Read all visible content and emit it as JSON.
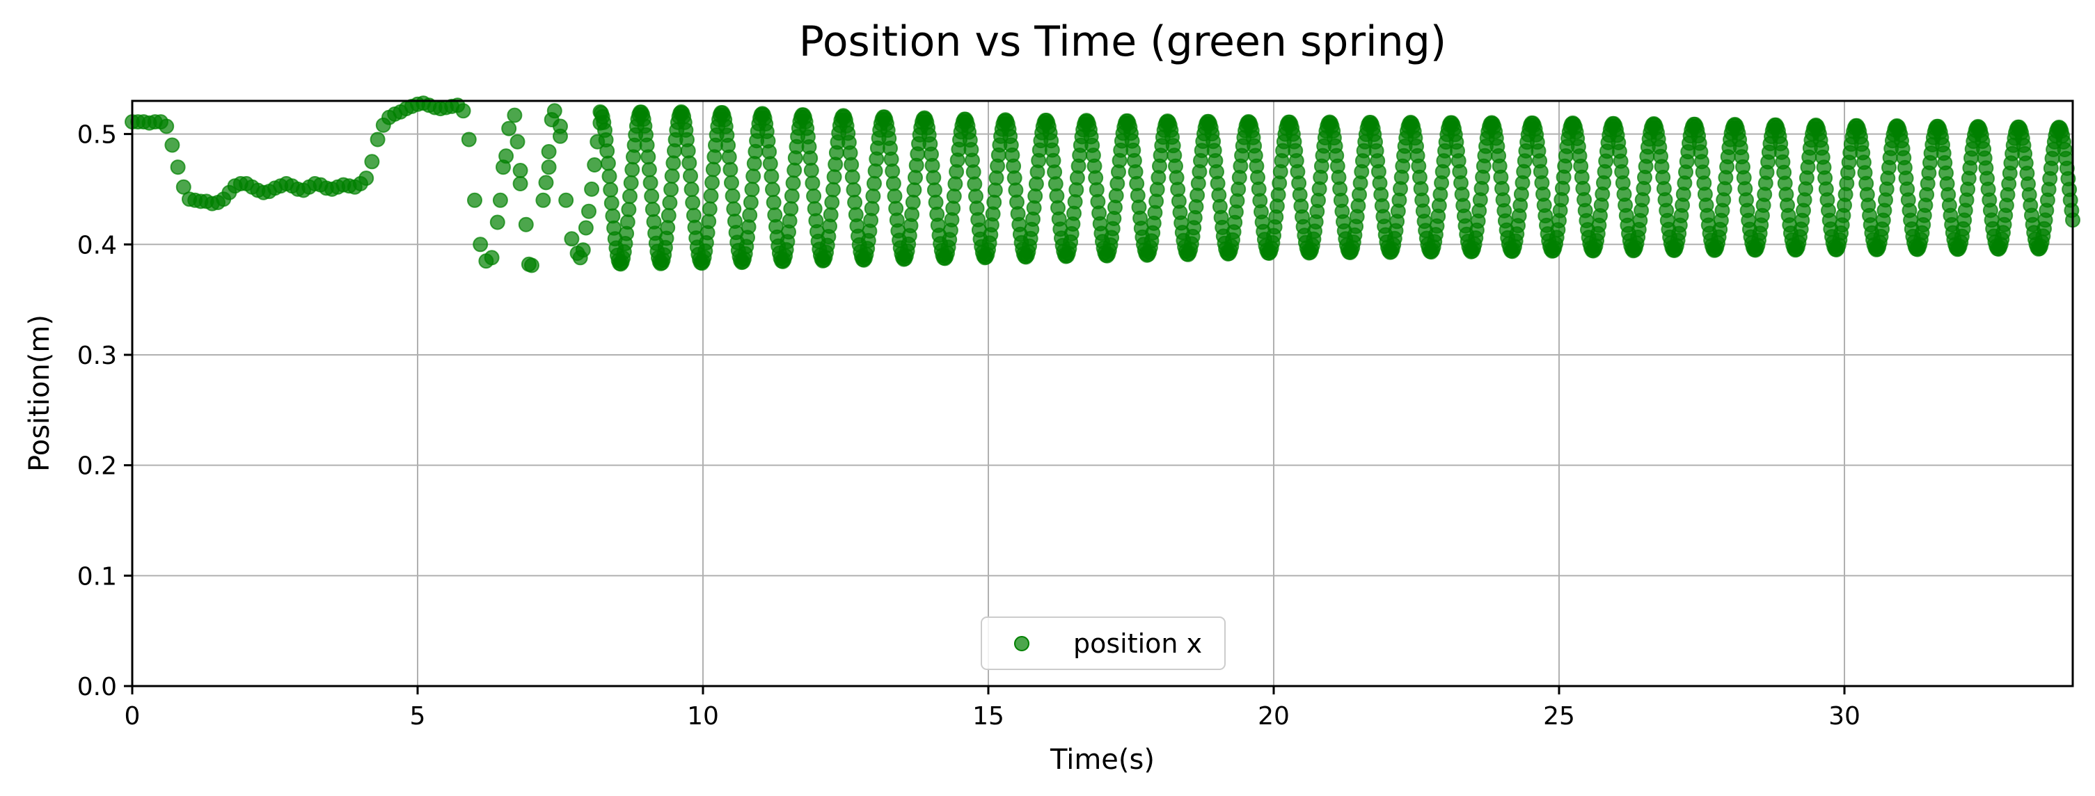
{
  "chart_data": {
    "type": "scatter",
    "title": "Position vs Time (green spring)",
    "xlabel": "Time(s)",
    "ylabel": "Position(m)",
    "xlim": [
      0,
      34
    ],
    "ylim": [
      0,
      0.53
    ],
    "xticks": [
      0,
      5,
      10,
      15,
      20,
      25,
      30
    ],
    "yticks": [
      0.0,
      0.1,
      0.2,
      0.3,
      0.4,
      0.5
    ],
    "xtick_labels": [
      "0",
      "5",
      "10",
      "15",
      "20",
      "25",
      "30"
    ],
    "ytick_labels": [
      "0.0",
      "0.1",
      "0.2",
      "0.3",
      "0.4",
      "0.5"
    ],
    "grid": true,
    "legend": {
      "placement": "lower center",
      "entries": [
        "position x"
      ]
    },
    "series": [
      {
        "name": "position x",
        "color": "#008000",
        "marker": "circle",
        "alpha": 0.7,
        "points": [
          [
            0.0,
            0.511
          ],
          [
            0.1,
            0.511
          ],
          [
            0.2,
            0.511
          ],
          [
            0.3,
            0.51
          ],
          [
            0.4,
            0.511
          ],
          [
            0.5,
            0.511
          ],
          [
            0.6,
            0.507
          ],
          [
            0.7,
            0.49
          ],
          [
            0.8,
            0.47
          ],
          [
            0.9,
            0.452
          ],
          [
            1.0,
            0.441
          ],
          [
            1.1,
            0.44
          ],
          [
            1.2,
            0.439
          ],
          [
            1.3,
            0.439
          ],
          [
            1.4,
            0.437
          ],
          [
            1.5,
            0.438
          ],
          [
            1.6,
            0.441
          ],
          [
            1.7,
            0.447
          ],
          [
            1.8,
            0.453
          ],
          [
            1.9,
            0.455
          ],
          [
            2.0,
            0.455
          ],
          [
            2.1,
            0.452
          ],
          [
            2.2,
            0.449
          ],
          [
            2.3,
            0.447
          ],
          [
            2.4,
            0.448
          ],
          [
            2.5,
            0.451
          ],
          [
            2.6,
            0.453
          ],
          [
            2.7,
            0.455
          ],
          [
            2.8,
            0.453
          ],
          [
            2.9,
            0.45
          ],
          [
            3.0,
            0.449
          ],
          [
            3.1,
            0.452
          ],
          [
            3.2,
            0.455
          ],
          [
            3.3,
            0.454
          ],
          [
            3.4,
            0.451
          ],
          [
            3.5,
            0.45
          ],
          [
            3.6,
            0.452
          ],
          [
            3.7,
            0.454
          ],
          [
            3.8,
            0.453
          ],
          [
            3.9,
            0.452
          ],
          [
            4.0,
            0.455
          ],
          [
            4.1,
            0.46
          ],
          [
            4.2,
            0.475
          ],
          [
            4.3,
            0.495
          ],
          [
            4.4,
            0.508
          ],
          [
            4.5,
            0.515
          ],
          [
            4.6,
            0.518
          ],
          [
            4.7,
            0.52
          ],
          [
            4.8,
            0.523
          ],
          [
            4.9,
            0.525
          ],
          [
            5.0,
            0.527
          ],
          [
            5.1,
            0.528
          ],
          [
            5.2,
            0.526
          ],
          [
            5.3,
            0.524
          ],
          [
            5.4,
            0.523
          ],
          [
            5.5,
            0.524
          ],
          [
            5.6,
            0.525
          ],
          [
            5.7,
            0.526
          ],
          [
            5.8,
            0.521
          ],
          [
            5.9,
            0.495
          ],
          [
            6.0,
            0.44
          ],
          [
            6.1,
            0.4
          ],
          [
            6.2,
            0.385
          ],
          [
            6.3,
            0.388
          ],
          [
            6.4,
            0.42
          ],
          [
            6.45,
            0.44
          ],
          [
            6.5,
            0.47
          ],
          [
            6.55,
            0.48
          ],
          [
            6.6,
            0.505
          ],
          [
            6.7,
            0.517
          ],
          [
            6.75,
            0.493
          ],
          [
            6.8,
            0.467
          ],
          [
            6.8,
            0.455
          ],
          [
            6.9,
            0.418
          ],
          [
            6.95,
            0.382
          ],
          [
            7.0,
            0.381
          ],
          [
            7.2,
            0.44
          ],
          [
            7.25,
            0.456
          ],
          [
            7.3,
            0.47
          ],
          [
            7.3,
            0.484
          ],
          [
            7.35,
            0.513
          ],
          [
            7.4,
            0.521
          ],
          [
            7.5,
            0.507
          ],
          [
            7.5,
            0.498
          ],
          [
            7.6,
            0.44
          ],
          [
            7.7,
            0.405
          ],
          [
            7.8,
            0.392
          ],
          [
            7.85,
            0.388
          ],
          [
            7.9,
            0.395
          ],
          [
            7.95,
            0.415
          ],
          [
            8.0,
            0.43
          ],
          [
            8.05,
            0.45
          ],
          [
            8.1,
            0.472
          ],
          [
            8.15,
            0.493
          ],
          [
            8.2,
            0.51
          ]
        ],
        "oscillation": {
          "start": 8.2,
          "end": 34.0,
          "period": 0.71,
          "max_envelope": {
            "t": [
              8.2,
              10,
              15,
              20,
              25,
              34
            ],
            "v": [
              0.52,
              0.52,
              0.513,
              0.511,
              0.51,
              0.506
            ]
          },
          "min_envelope": {
            "t": [
              8.2,
              10,
              15,
              20,
              25,
              34
            ],
            "v": [
              0.382,
              0.383,
              0.388,
              0.392,
              0.394,
              0.396
            ]
          },
          "sample_step": 0.02
        }
      }
    ]
  }
}
